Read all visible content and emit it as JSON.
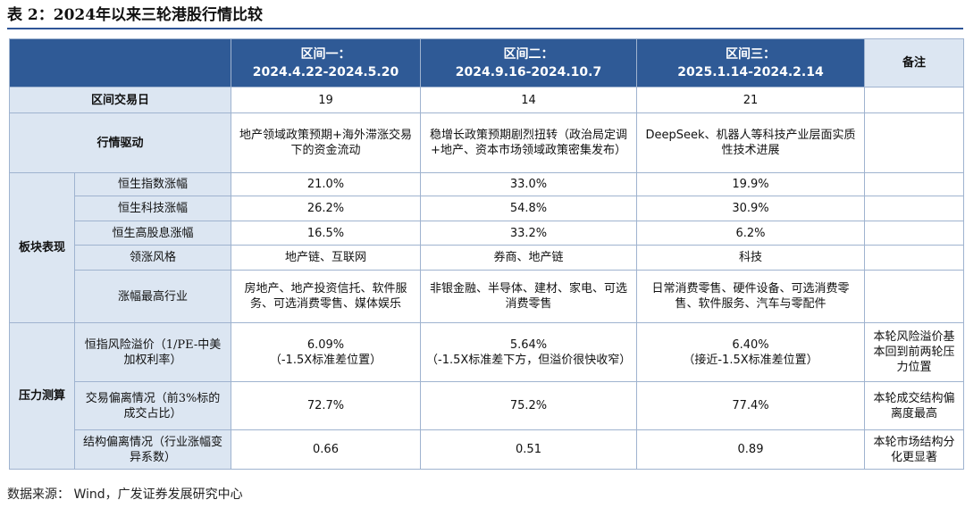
{
  "header": {
    "title": "表 2：2024年以来三轮港股行情比较"
  },
  "table": {
    "columns": [
      {
        "name": "区间一：",
        "range": "2024.4.22-2024.5.20"
      },
      {
        "name": "区间二：",
        "range": "2024.9.16-2024.10.7"
      },
      {
        "name": "区间三：",
        "range": "2025.1.14-2024.2.14"
      }
    ],
    "note_header": "备注",
    "rows": [
      {
        "label": "区间交易日",
        "cells": [
          "19",
          "14",
          "21"
        ]
      },
      {
        "label": "行情驱动",
        "cells": [
          "地产领域政策预期+海外滞涨交易下的资金流动",
          "稳增长政策预期剧烈扭转（政治局定调+地产、资本市场领域政策密集发布）",
          "DeepSeek、机器人等科技产业层面实质性技术进展"
        ]
      }
    ],
    "groups": [
      {
        "name": "板块表现",
        "rows": [
          {
            "label": "恒生指数涨幅",
            "cells": [
              "21.0%",
              "33.0%",
              "19.9%"
            ]
          },
          {
            "label": "恒生科技涨幅",
            "cells": [
              "26.2%",
              "54.8%",
              "30.9%"
            ]
          },
          {
            "label": "恒生高股息涨幅",
            "cells": [
              "16.5%",
              "33.2%",
              "6.2%"
            ]
          },
          {
            "label": "领涨风格",
            "cells": [
              "地产链、互联网",
              "券商、地产链",
              "科技"
            ]
          },
          {
            "label": "涨幅最高行业",
            "cells": [
              "房地产、地产投资信托、软件服务、可选消费零售、媒体娱乐",
              "非银金融、半导体、建材、家电、可选消费零售",
              "日常消费零售、硬件设备、可选消费零售、软件服务、汽车与零配件"
            ]
          }
        ]
      },
      {
        "name": "压力测算",
        "rows": [
          {
            "label": "恒指风险溢价（1/PE-中美加权利率）",
            "cells": [
              [
                "6.09%",
                "（-1.5X标准差位置）"
              ],
              [
                "5.64%",
                "（-1.5X标准差下方，但溢价很快收窄）"
              ],
              [
                "6.40%",
                "（接近-1.5X标准差位置）"
              ]
            ],
            "note": "本轮风险溢价基本回到前两轮压力位置"
          },
          {
            "label": "交易偏离情况（前3%标的成交占比）",
            "cells": [
              "72.7%",
              "75.2%",
              "77.4%"
            ],
            "note": "本轮成交结构偏离度最高"
          },
          {
            "label": "结构偏离情况（行业涨幅变异系数）",
            "cells": [
              "0.66",
              "0.51",
              "0.89"
            ],
            "note": "本轮市场结构分化更显著"
          }
        ]
      }
    ]
  },
  "source": "数据来源： Wind，广发证券发展研究中心"
}
